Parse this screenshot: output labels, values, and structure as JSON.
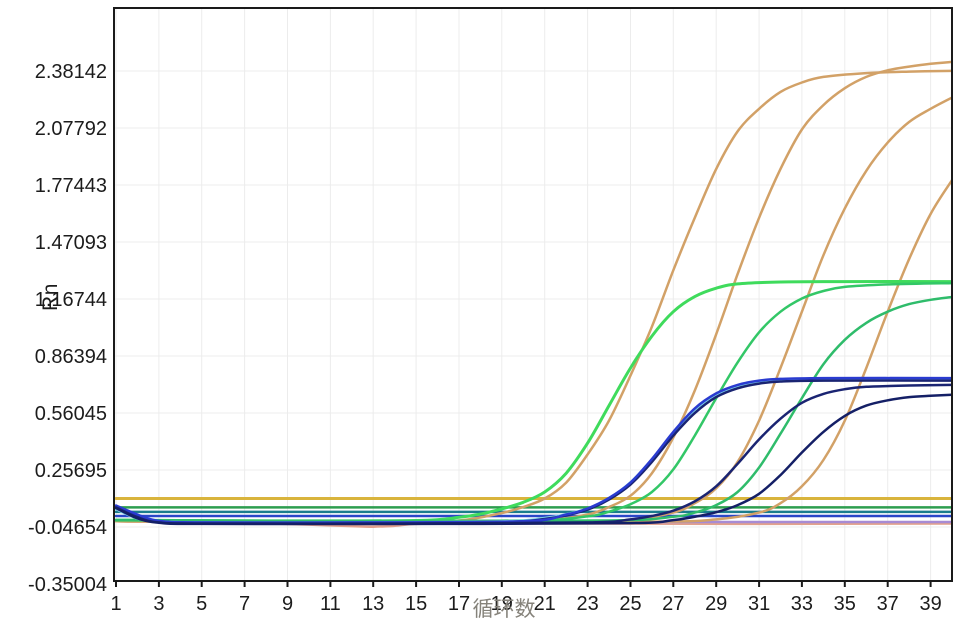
{
  "chart_data": {
    "type": "line",
    "title": "",
    "xlabel": "循环数",
    "ylabel": "Rn",
    "xlim": [
      1,
      40
    ],
    "ylim": [
      -0.35004,
      2.717
    ],
    "grid": true,
    "x_ticks": [
      1,
      3,
      5,
      7,
      9,
      11,
      13,
      15,
      17,
      19,
      21,
      23,
      25,
      27,
      29,
      31,
      33,
      35,
      37,
      39
    ],
    "y_ticks": [
      2.38142,
      2.07792,
      1.77443,
      1.47093,
      1.16744,
      0.86394,
      0.56045,
      0.25695,
      -0.04654,
      -0.35004
    ],
    "y_tick_labels": [
      "2.38142",
      "2.07792",
      "1.77443",
      "1.47093",
      "1.16744",
      "0.86394",
      "0.56045",
      "0.25695",
      "-0.04654",
      "-0.35004"
    ],
    "legend": [],
    "threshold_value": 0.105,
    "colors": {
      "threshold": "#D9B43C",
      "tan": "#D2A167",
      "green_bright": "#3FDB5C",
      "green_mid": "#33C767",
      "navy": "#1A2472",
      "royal_blue": "#2A3BD0",
      "cyan": "#7CD0E8",
      "teal_flat": "#1B7D8C",
      "green_flat": "#2E9E4F",
      "blue_flat": "#2946C8",
      "purple_flat": "#A78BD4",
      "salmon_flat": "#E2A18C"
    },
    "series": [
      {
        "name": "baseline-salmon",
        "color": "#E2A18C",
        "width": 2.5,
        "points": [
          [
            1,
            -0.012
          ],
          [
            4,
            -0.016
          ],
          [
            7,
            -0.024
          ],
          [
            10,
            -0.034
          ],
          [
            12,
            -0.042
          ],
          [
            13,
            -0.045
          ],
          [
            14,
            -0.04
          ],
          [
            15,
            -0.03
          ],
          [
            17,
            -0.026
          ],
          [
            22,
            -0.028
          ],
          [
            30,
            -0.03
          ],
          [
            40,
            -0.028
          ]
        ]
      },
      {
        "name": "baseline-purple",
        "color": "#A78BD4",
        "width": 2.5,
        "points": [
          [
            1,
            -0.016
          ],
          [
            10,
            -0.018
          ],
          [
            25,
            -0.02
          ],
          [
            40,
            -0.02
          ]
        ]
      },
      {
        "name": "baseline-blue",
        "color": "#2946C8",
        "width": 2.5,
        "points": [
          [
            1,
            0.012
          ],
          [
            40,
            0.012
          ]
        ]
      },
      {
        "name": "baseline-teal",
        "color": "#1B7D8C",
        "width": 2.5,
        "points": [
          [
            1,
            0.034
          ],
          [
            40,
            0.034
          ]
        ]
      },
      {
        "name": "baseline-green",
        "color": "#2E9E4F",
        "width": 2.5,
        "points": [
          [
            1,
            0.058
          ],
          [
            40,
            0.058
          ]
        ]
      },
      {
        "name": "threshold-line",
        "color": "#D9B43C",
        "width": 3,
        "points": [
          [
            1,
            0.105
          ],
          [
            40,
            0.105
          ]
        ]
      },
      {
        "name": "amplification-tan-1",
        "color": "#D2A167",
        "width": 2.5,
        "points": [
          [
            1,
            -0.016
          ],
          [
            8,
            -0.02
          ],
          [
            14,
            -0.022
          ],
          [
            17,
            -0.012
          ],
          [
            19,
            0.028
          ],
          [
            20,
            0.06
          ],
          [
            21,
            0.105
          ],
          [
            22,
            0.19
          ],
          [
            23,
            0.34
          ],
          [
            24,
            0.52
          ],
          [
            25,
            0.76
          ],
          [
            26,
            1.02
          ],
          [
            27,
            1.32
          ],
          [
            28,
            1.6
          ],
          [
            29,
            1.86
          ],
          [
            30,
            2.06
          ],
          [
            31,
            2.18
          ],
          [
            32,
            2.27
          ],
          [
            33,
            2.32
          ],
          [
            34,
            2.35
          ],
          [
            36,
            2.37
          ],
          [
            38,
            2.378
          ],
          [
            40,
            2.382
          ]
        ]
      },
      {
        "name": "amplification-tan-2",
        "color": "#D2A167",
        "width": 2.5,
        "points": [
          [
            1,
            -0.016
          ],
          [
            10,
            -0.02
          ],
          [
            18,
            -0.02
          ],
          [
            21,
            -0.012
          ],
          [
            23,
            0.02
          ],
          [
            24,
            0.06
          ],
          [
            25,
            0.12
          ],
          [
            26,
            0.24
          ],
          [
            27,
            0.43
          ],
          [
            28,
            0.68
          ],
          [
            29,
            0.98
          ],
          [
            30,
            1.3
          ],
          [
            31,
            1.6
          ],
          [
            32,
            1.86
          ],
          [
            33,
            2.07
          ],
          [
            34,
            2.2
          ],
          [
            35,
            2.29
          ],
          [
            36,
            2.35
          ],
          [
            37,
            2.385
          ],
          [
            38,
            2.405
          ],
          [
            39,
            2.42
          ],
          [
            40,
            2.43
          ]
        ]
      },
      {
        "name": "amplification-tan-3",
        "color": "#D2A167",
        "width": 2.5,
        "points": [
          [
            1,
            -0.016
          ],
          [
            12,
            -0.02
          ],
          [
            22,
            -0.018
          ],
          [
            25,
            -0.008
          ],
          [
            27,
            0.03
          ],
          [
            28,
            0.08
          ],
          [
            29,
            0.16
          ],
          [
            30,
            0.3
          ],
          [
            31,
            0.52
          ],
          [
            32,
            0.8
          ],
          [
            33,
            1.1
          ],
          [
            34,
            1.4
          ],
          [
            35,
            1.65
          ],
          [
            36,
            1.85
          ],
          [
            37,
            2.0
          ],
          [
            38,
            2.11
          ],
          [
            39,
            2.18
          ],
          [
            40,
            2.24
          ]
        ]
      },
      {
        "name": "amplification-tan-4",
        "color": "#D2A167",
        "width": 2.5,
        "points": [
          [
            1,
            -0.016
          ],
          [
            14,
            -0.02
          ],
          [
            26,
            -0.018
          ],
          [
            29,
            -0.006
          ],
          [
            31,
            0.03
          ],
          [
            32,
            0.08
          ],
          [
            33,
            0.17
          ],
          [
            34,
            0.31
          ],
          [
            35,
            0.52
          ],
          [
            36,
            0.8
          ],
          [
            37,
            1.1
          ],
          [
            38,
            1.38
          ],
          [
            39,
            1.62
          ],
          [
            40,
            1.8
          ]
        ]
      },
      {
        "name": "amplification-green-1",
        "color": "#3FDB5C",
        "width": 3,
        "points": [
          [
            1,
            -0.01
          ],
          [
            8,
            -0.014
          ],
          [
            15,
            -0.012
          ],
          [
            17,
            0.005
          ],
          [
            18,
            0.022
          ],
          [
            19,
            0.05
          ],
          [
            20,
            0.085
          ],
          [
            21,
            0.14
          ],
          [
            22,
            0.24
          ],
          [
            23,
            0.4
          ],
          [
            24,
            0.6
          ],
          [
            25,
            0.8
          ],
          [
            26,
            0.97
          ],
          [
            27,
            1.1
          ],
          [
            28,
            1.18
          ],
          [
            29,
            1.225
          ],
          [
            30,
            1.248
          ],
          [
            32,
            1.258
          ],
          [
            35,
            1.26
          ],
          [
            40,
            1.26
          ]
        ]
      },
      {
        "name": "amplification-green-2",
        "color": "#33C767",
        "width": 2.5,
        "points": [
          [
            1,
            -0.01
          ],
          [
            10,
            -0.014
          ],
          [
            20,
            -0.012
          ],
          [
            23,
            0.01
          ],
          [
            24,
            0.035
          ],
          [
            25,
            0.075
          ],
          [
            26,
            0.14
          ],
          [
            27,
            0.26
          ],
          [
            28,
            0.44
          ],
          [
            29,
            0.64
          ],
          [
            30,
            0.83
          ],
          [
            31,
            0.99
          ],
          [
            32,
            1.1
          ],
          [
            33,
            1.17
          ],
          [
            34,
            1.21
          ],
          [
            35,
            1.232
          ],
          [
            37,
            1.245
          ],
          [
            40,
            1.252
          ]
        ]
      },
      {
        "name": "amplification-green-3",
        "color": "#2FBC6B",
        "width": 2.5,
        "points": [
          [
            1,
            -0.01
          ],
          [
            12,
            -0.014
          ],
          [
            24,
            -0.012
          ],
          [
            27,
            0.008
          ],
          [
            28,
            0.03
          ],
          [
            29,
            0.07
          ],
          [
            30,
            0.14
          ],
          [
            31,
            0.27
          ],
          [
            32,
            0.45
          ],
          [
            33,
            0.64
          ],
          [
            34,
            0.82
          ],
          [
            35,
            0.95
          ],
          [
            36,
            1.04
          ],
          [
            37,
            1.1
          ],
          [
            38,
            1.14
          ],
          [
            39,
            1.163
          ],
          [
            40,
            1.178
          ]
        ]
      },
      {
        "name": "amplification-cyan-1",
        "color": "#7CD0E8",
        "width": 3,
        "points": [
          [
            1,
            0.05
          ],
          [
            2,
            0.0
          ],
          [
            3,
            -0.018
          ],
          [
            5,
            -0.024
          ],
          [
            12,
            -0.024
          ],
          [
            19,
            -0.018
          ],
          [
            21,
            0.0
          ],
          [
            22,
            0.02
          ],
          [
            23,
            0.05
          ],
          [
            24,
            0.105
          ],
          [
            25,
            0.19
          ],
          [
            26,
            0.31
          ],
          [
            27,
            0.45
          ],
          [
            28,
            0.57
          ],
          [
            29,
            0.655
          ],
          [
            30,
            0.7
          ],
          [
            31,
            0.725
          ],
          [
            32,
            0.736
          ],
          [
            34,
            0.742
          ],
          [
            40,
            0.742
          ]
        ]
      },
      {
        "name": "amplification-navy-1",
        "color": "#1A2472",
        "width": 2.5,
        "points": [
          [
            1,
            0.062
          ],
          [
            2,
            0.01
          ],
          [
            3,
            -0.02
          ],
          [
            5,
            -0.026
          ],
          [
            12,
            -0.026
          ],
          [
            19,
            -0.02
          ],
          [
            21,
            -0.004
          ],
          [
            22,
            0.016
          ],
          [
            23,
            0.046
          ],
          [
            24,
            0.1
          ],
          [
            25,
            0.18
          ],
          [
            26,
            0.3
          ],
          [
            27,
            0.44
          ],
          [
            28,
            0.56
          ],
          [
            29,
            0.645
          ],
          [
            30,
            0.692
          ],
          [
            31,
            0.717
          ],
          [
            32,
            0.728
          ],
          [
            34,
            0.733
          ],
          [
            40,
            0.733
          ]
        ]
      },
      {
        "name": "amplification-royalblue-1",
        "color": "#2A3BD0",
        "width": 2.5,
        "points": [
          [
            1,
            0.068
          ],
          [
            2,
            0.02
          ],
          [
            3,
            -0.014
          ],
          [
            5,
            -0.022
          ],
          [
            12,
            -0.022
          ],
          [
            20,
            -0.016
          ],
          [
            22,
            0.02
          ],
          [
            23,
            0.052
          ],
          [
            24,
            0.108
          ],
          [
            25,
            0.19
          ],
          [
            26,
            0.315
          ],
          [
            27,
            0.46
          ],
          [
            28,
            0.585
          ],
          [
            29,
            0.665
          ],
          [
            30,
            0.71
          ],
          [
            31,
            0.733
          ],
          [
            32,
            0.742
          ],
          [
            34,
            0.746
          ],
          [
            40,
            0.746
          ]
        ]
      },
      {
        "name": "amplification-navy-2",
        "color": "#1A2472",
        "width": 2.5,
        "points": [
          [
            1,
            0.058
          ],
          [
            2,
            0.005
          ],
          [
            3,
            -0.022
          ],
          [
            5,
            -0.028
          ],
          [
            14,
            -0.028
          ],
          [
            23,
            -0.022
          ],
          [
            25,
            -0.006
          ],
          [
            26,
            0.012
          ],
          [
            27,
            0.04
          ],
          [
            28,
            0.09
          ],
          [
            29,
            0.17
          ],
          [
            30,
            0.29
          ],
          [
            31,
            0.42
          ],
          [
            32,
            0.53
          ],
          [
            33,
            0.615
          ],
          [
            34,
            0.662
          ],
          [
            35,
            0.687
          ],
          [
            36,
            0.7
          ],
          [
            38,
            0.707
          ],
          [
            40,
            0.71
          ]
        ]
      },
      {
        "name": "amplification-navy-3",
        "color": "#141F66",
        "width": 2.5,
        "points": [
          [
            1,
            0.054
          ],
          [
            2,
            0.0
          ],
          [
            3,
            -0.024
          ],
          [
            5,
            -0.03
          ],
          [
            16,
            -0.03
          ],
          [
            25,
            -0.026
          ],
          [
            27,
            -0.01
          ],
          [
            28,
            0.008
          ],
          [
            29,
            0.032
          ],
          [
            30,
            0.07
          ],
          [
            31,
            0.13
          ],
          [
            32,
            0.23
          ],
          [
            33,
            0.35
          ],
          [
            34,
            0.46
          ],
          [
            35,
            0.545
          ],
          [
            36,
            0.6
          ],
          [
            37,
            0.628
          ],
          [
            38,
            0.645
          ],
          [
            39,
            0.652
          ],
          [
            40,
            0.658
          ]
        ]
      }
    ]
  }
}
